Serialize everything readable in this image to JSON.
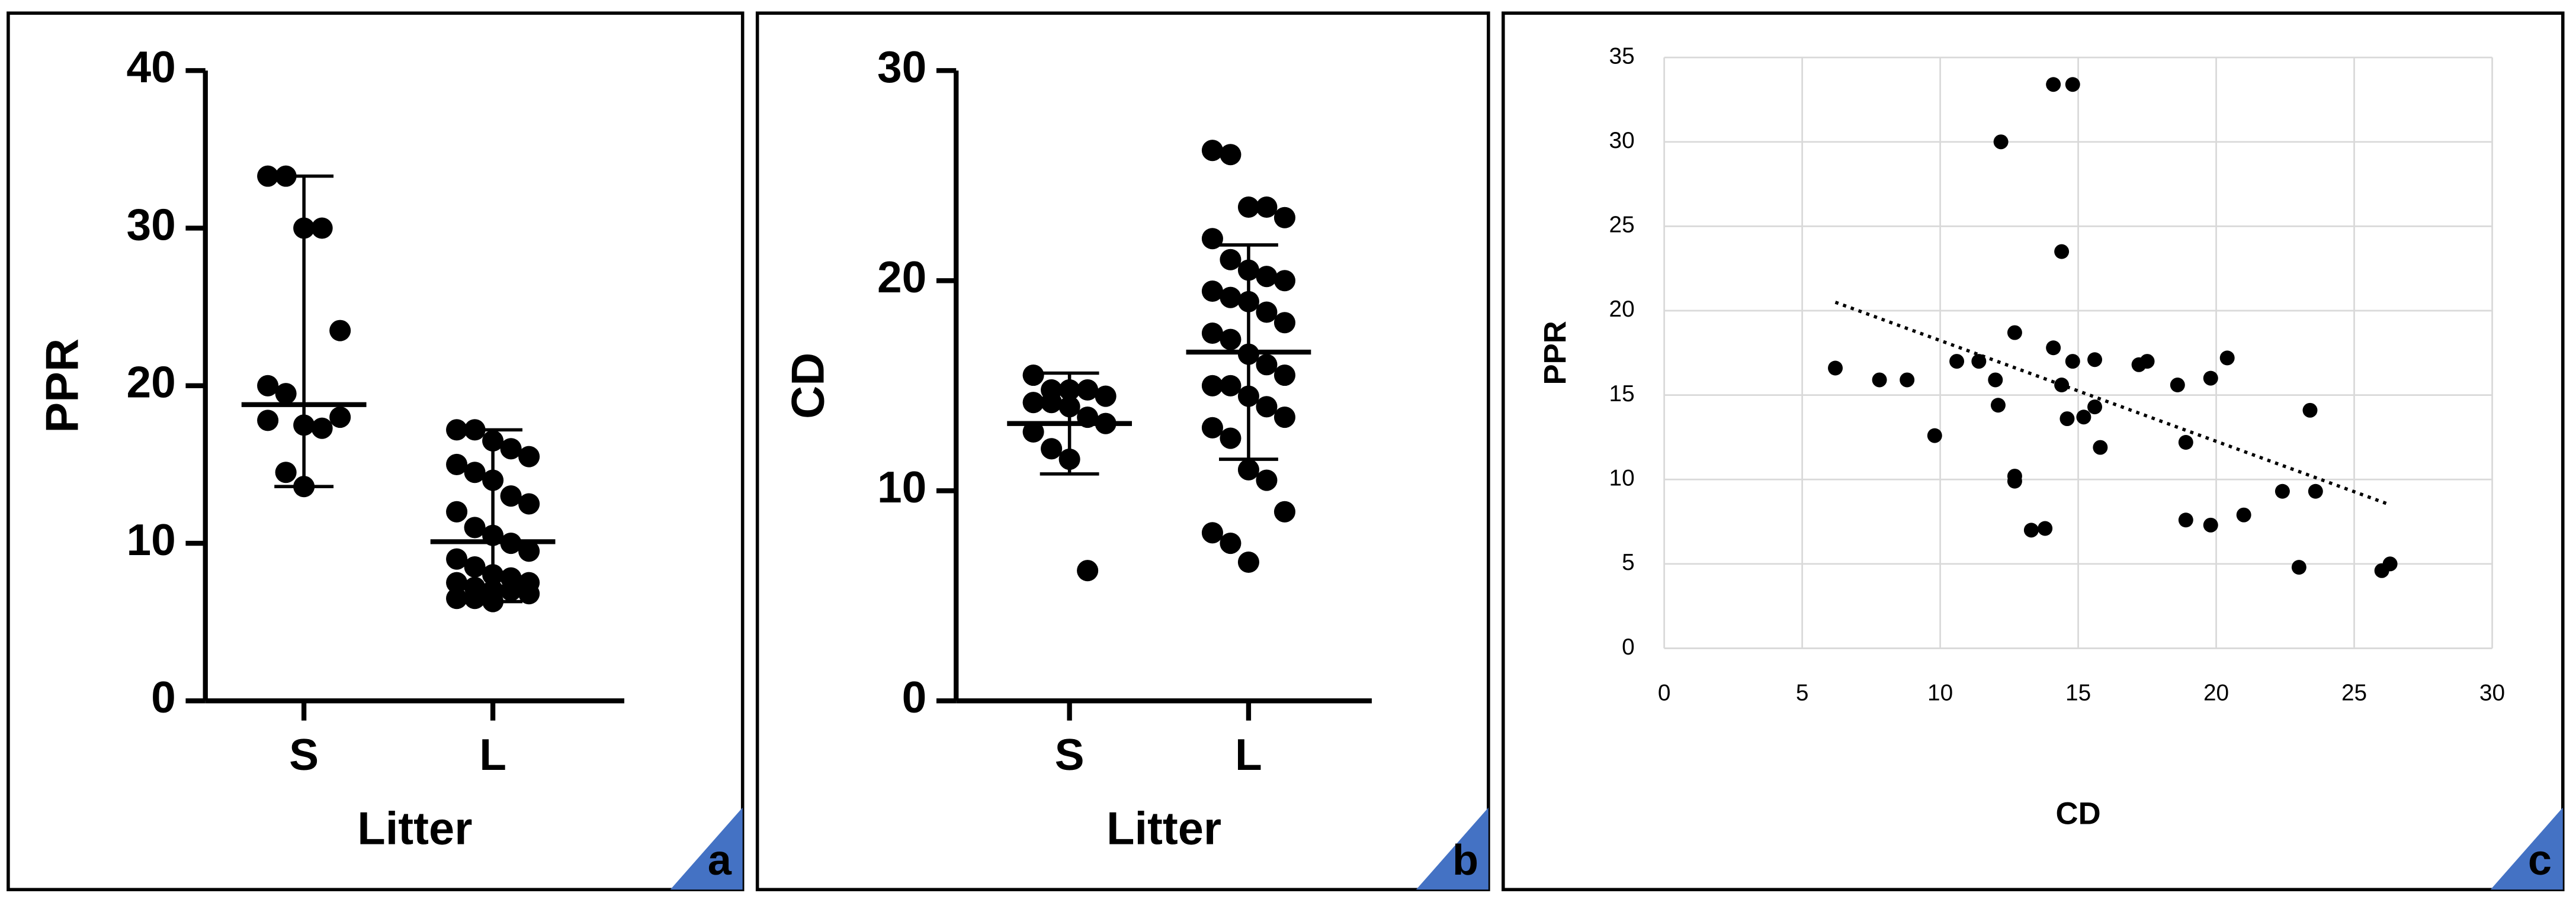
{
  "chart_data": [
    {
      "type": "strip",
      "panel_label": "a",
      "ylabel": "PPR",
      "xlabel": "Litter",
      "color": "#000000",
      "categories": [
        "S",
        "L"
      ],
      "ylim": [
        0,
        40
      ],
      "yticks": [
        0,
        10,
        20,
        30,
        40
      ],
      "groups": [
        {
          "values": [
            33.3,
            33.3,
            30,
            30,
            23.5,
            20,
            19.5,
            17.5,
            17.3,
            18,
            17.8,
            14.5,
            13.6
          ],
          "center": 18.8,
          "lower": 13.6,
          "upper": 33.3
        },
        {
          "values": [
            17.2,
            17.2,
            16.5,
            16,
            15.5,
            15,
            14.5,
            14,
            13,
            12.5,
            12,
            11,
            10.5,
            10,
            9.5,
            9,
            8.5,
            8,
            7.8,
            7.5,
            7.5,
            7.2,
            7,
            7,
            6.8,
            6.5,
            6.5,
            6.3
          ],
          "center": 10.1,
          "lower": 6.3,
          "upper": 17.2
        }
      ]
    },
    {
      "type": "strip",
      "panel_label": "b",
      "ylabel": "CD",
      "xlabel": "Litter",
      "color": "#000000",
      "categories": [
        "S",
        "L"
      ],
      "ylim": [
        0,
        30
      ],
      "yticks": [
        0,
        10,
        20,
        30
      ],
      "groups": [
        {
          "values": [
            15.5,
            14.8,
            14.8,
            14.8,
            14.5,
            14.2,
            14.2,
            14,
            13.5,
            13.2,
            12.8,
            12,
            11.5,
            6.2
          ],
          "center": 13.2,
          "lower": 10.8,
          "upper": 15.6
        },
        {
          "values": [
            26.2,
            26,
            23.5,
            23.5,
            23,
            22,
            21,
            20.5,
            20.2,
            20,
            19.5,
            19.2,
            19,
            18.5,
            18,
            17.5,
            17.2,
            16.5,
            16,
            15.5,
            15,
            15,
            14.5,
            14,
            13.5,
            13,
            12.5,
            11,
            10.5,
            9,
            8,
            7.5,
            6.6
          ],
          "center": 16.6,
          "lower": 11.5,
          "upper": 21.7
        }
      ]
    },
    {
      "type": "scatter",
      "panel_label": "c",
      "ylabel": "PPR",
      "xlabel": "CD",
      "color": "#000000",
      "grid": true,
      "xlim": [
        0,
        30
      ],
      "xticks": [
        0,
        5,
        10,
        15,
        20,
        25,
        30
      ],
      "ylim": [
        0,
        35
      ],
      "yticks": [
        0,
        5,
        10,
        15,
        20,
        25,
        30,
        35
      ],
      "x": [
        6.2,
        7.8,
        8.8,
        9.8,
        10.6,
        11.4,
        12,
        12.1,
        12.2,
        12.7,
        12.7,
        12.7,
        13.3,
        13.8,
        14.1,
        14.1,
        14.4,
        14.4,
        14.6,
        14.8,
        14.8,
        15.2,
        15.6,
        15.6,
        15.8,
        17.2,
        17.5,
        18.6,
        18.9,
        18.9,
        19.8,
        19.8,
        20.4,
        21,
        22.4,
        23,
        23.4,
        23.6,
        26,
        26.3
      ],
      "y": [
        16.6,
        15.9,
        15.9,
        12.6,
        17,
        17,
        15.9,
        14.4,
        30,
        18.7,
        10.2,
        9.9,
        7,
        7.1,
        17.8,
        33.4,
        23.5,
        15.6,
        13.6,
        33.4,
        17,
        13.7,
        17.1,
        14.3,
        11.9,
        16.8,
        17,
        15.6,
        12.2,
        7.6,
        7.3,
        16,
        17.2,
        7.9,
        9.3,
        4.8,
        14.1,
        9.3,
        4.6,
        5
      ],
      "trendline": {
        "x": [
          6.2,
          26.3
        ],
        "y": [
          20.5,
          8.5
        ]
      }
    }
  ]
}
